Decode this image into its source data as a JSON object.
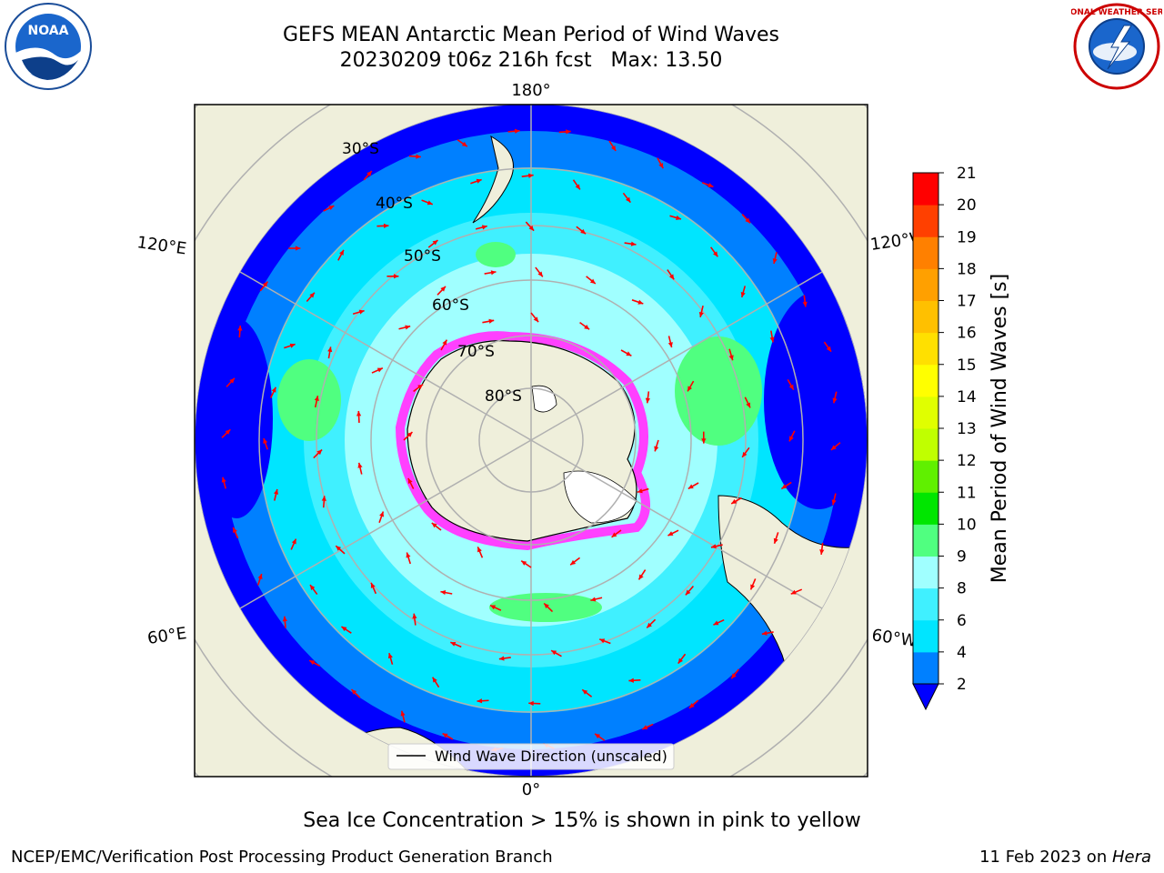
{
  "title": {
    "line1": "GEFS MEAN Antarctic Mean Period of Wind Waves",
    "line2": "20230209 t06z 216h fcst   Max: 13.50"
  },
  "subtitle": "Sea Ice Concentration > 15% is shown in pink to yellow",
  "footer": {
    "left": "NCEP/EMC/Verification Post Processing Product Generation Branch",
    "right_date": "11 Feb 2023 on ",
    "right_host": "Hera"
  },
  "logos": {
    "left": {
      "name": "noaa-logo",
      "text": "NOAA"
    },
    "right": {
      "name": "nws-logo",
      "text": "NATIONAL WEATHER SERVICE"
    }
  },
  "map": {
    "projection": "south-polar-stereographic",
    "lon_labels": {
      "top": "180°",
      "bottom": "0°",
      "left_upper": "120°E",
      "left_lower": "60°E",
      "right_upper": "120°W",
      "right_lower": "60°W"
    },
    "lat_labels": [
      "30°S",
      "40°S",
      "50°S",
      "60°S",
      "70°S",
      "80°S"
    ],
    "legend": "Wind Wave Direction (unscaled)",
    "arrow_color": "#ff0000",
    "land_color": "#efefdb",
    "grid_color": "#b0b0b0"
  },
  "colorbar": {
    "label": "Mean Period of Wind Waves [s]",
    "ticks": [
      "2",
      "4",
      "6",
      "8",
      "9",
      "10",
      "11",
      "12",
      "13",
      "14",
      "15",
      "16",
      "17",
      "18",
      "19",
      "20",
      "21"
    ],
    "colors": [
      "#0080ff",
      "#00e5ff",
      "#40f0ff",
      "#a0ffff",
      "#50ff80",
      "#00e600",
      "#60f000",
      "#c0ff00",
      "#e0ff00",
      "#ffff00",
      "#ffe000",
      "#ffc000",
      "#ffa000",
      "#ff8000",
      "#ff4000",
      "#ff0000"
    ],
    "under_color": "#0000ff"
  }
}
